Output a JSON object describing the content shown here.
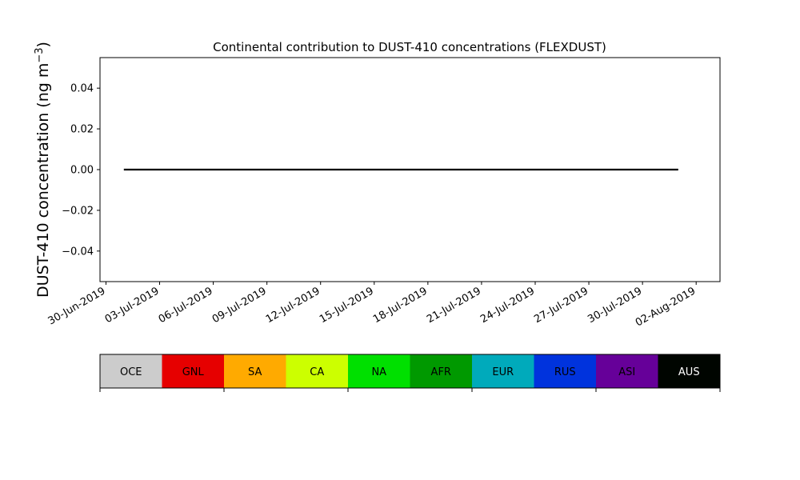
{
  "chart_data": {
    "type": "line",
    "title": "Continental contribution to DUST-410 concentrations (FLEXDUST)",
    "ylabel": "DUST-410 concentration (ng m",
    "ylabel_superscript": "−3",
    "ylabel_suffix": ")",
    "xlabel": "",
    "x_type": "date",
    "xlim": [
      "2019-06-29T16:00",
      "2019-08-03T08:00"
    ],
    "ylim": [
      -0.055,
      0.055
    ],
    "x_ticks": [
      {
        "date": "2019-06-30",
        "label": "30-Jun-2019"
      },
      {
        "date": "2019-07-03",
        "label": "03-Jul-2019"
      },
      {
        "date": "2019-07-06",
        "label": "06-Jul-2019"
      },
      {
        "date": "2019-07-09",
        "label": "09-Jul-2019"
      },
      {
        "date": "2019-07-12",
        "label": "12-Jul-2019"
      },
      {
        "date": "2019-07-15",
        "label": "15-Jul-2019"
      },
      {
        "date": "2019-07-18",
        "label": "18-Jul-2019"
      },
      {
        "date": "2019-07-21",
        "label": "21-Jul-2019"
      },
      {
        "date": "2019-07-24",
        "label": "24-Jul-2019"
      },
      {
        "date": "2019-07-27",
        "label": "27-Jul-2019"
      },
      {
        "date": "2019-07-30",
        "label": "30-Jul-2019"
      },
      {
        "date": "2019-08-02",
        "label": "02-Aug-2019"
      }
    ],
    "y_ticks": [
      {
        "value": 0.04,
        "label": "0.04"
      },
      {
        "value": 0.02,
        "label": "0.02"
      },
      {
        "value": 0.0,
        "label": "0.00"
      },
      {
        "value": -0.02,
        "label": "−0.02"
      },
      {
        "value": -0.04,
        "label": "−0.04"
      }
    ],
    "series": [
      {
        "color": "#000000",
        "x": [
          "2019-07-01",
          "2019-08-01"
        ],
        "y": [
          0.0,
          0.0
        ]
      }
    ],
    "grid": false
  },
  "legend": {
    "placement": "bottom",
    "items": [
      {
        "label": "OCE",
        "color": "#cccccc",
        "text_color": "#000000"
      },
      {
        "label": "GNL",
        "color": "#e60000",
        "text_color": "#000000"
      },
      {
        "label": "SA",
        "color": "#ffaa00",
        "text_color": "#000000"
      },
      {
        "label": "CA",
        "color": "#ccff00",
        "text_color": "#000000"
      },
      {
        "label": "NA",
        "color": "#00e000",
        "text_color": "#000000"
      },
      {
        "label": "AFR",
        "color": "#009900",
        "text_color": "#000000"
      },
      {
        "label": "EUR",
        "color": "#00aabb",
        "text_color": "#000000"
      },
      {
        "label": "RUS",
        "color": "#0033dd",
        "text_color": "#000000"
      },
      {
        "label": "ASI",
        "color": "#660099",
        "text_color": "#000000"
      },
      {
        "label": "AUS",
        "color": "#000500",
        "text_color": "#ffffff"
      }
    ]
  }
}
